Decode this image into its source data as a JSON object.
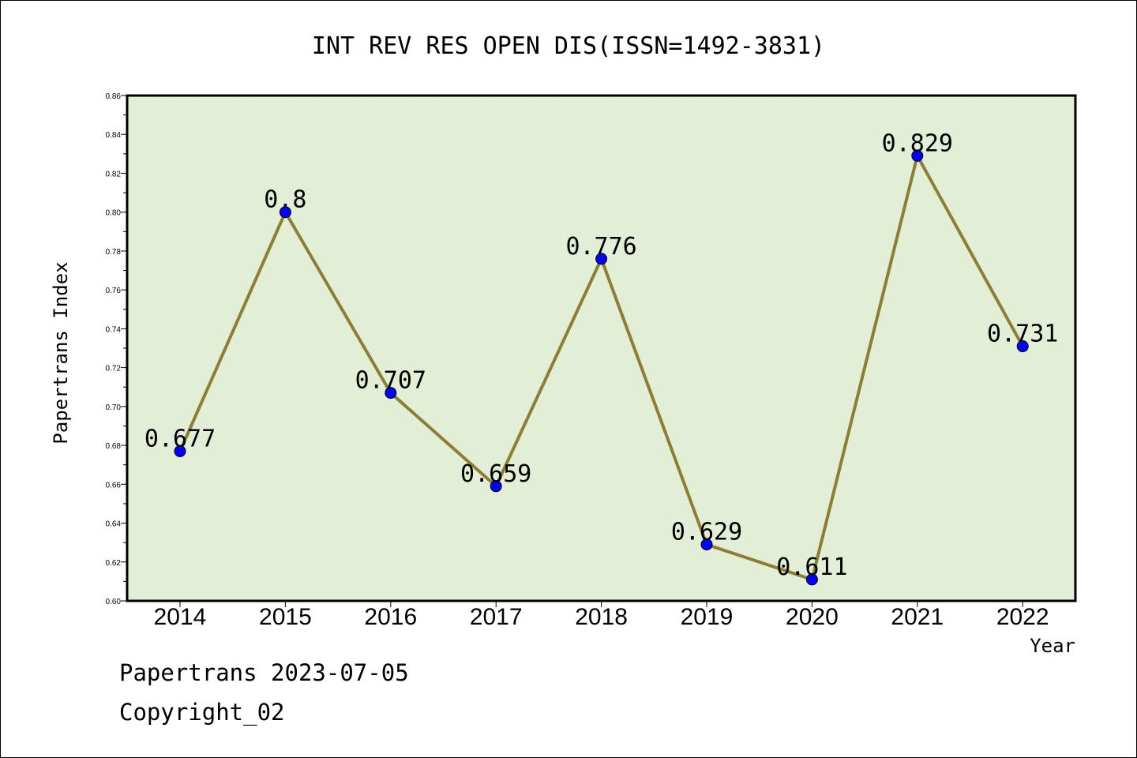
{
  "chart_data": {
    "type": "line",
    "title": "INT REV RES OPEN DIS(ISSN=1492-3831)",
    "xlabel": "Year",
    "ylabel": "Papertrans Index",
    "categories": [
      "2014",
      "2015",
      "2016",
      "2017",
      "2018",
      "2019",
      "2020",
      "2021",
      "2022"
    ],
    "series": [
      {
        "values": [
          0.677,
          0.8,
          0.707,
          0.659,
          0.776,
          0.629,
          0.611,
          0.829,
          0.731
        ]
      }
    ],
    "data_labels": [
      "0.677",
      "0.8",
      "0.707",
      "0.659",
      "0.776",
      "0.629",
      "0.611",
      "0.829",
      "0.731"
    ],
    "ylim": [
      0.6,
      0.86
    ],
    "yticks": [
      "0.60",
      "0.62",
      "0.64",
      "0.66",
      "0.68",
      "0.70",
      "0.72",
      "0.74",
      "0.76",
      "0.78",
      "0.80",
      "0.82",
      "0.84",
      "0.86"
    ],
    "grid": false,
    "colors": {
      "plot_background": "#e2efd6",
      "line": "#8c7f35",
      "marker": "#0000ff"
    }
  },
  "footer": {
    "line1": "Papertrans 2023-07-05",
    "line2": "Copyright_02"
  }
}
